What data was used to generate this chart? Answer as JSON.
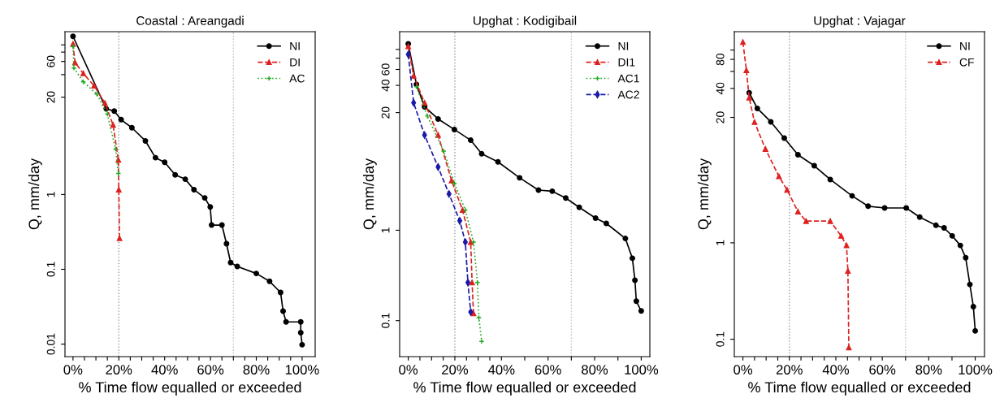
{
  "chart_data": [
    {
      "type": "line",
      "title": "Coastal : Areangadi",
      "xlabel": "% Time flow equalled or exceeded",
      "ylabel": "Q, mm/day",
      "log": "y",
      "legend": "top right",
      "grid": false,
      "xlim": [
        -3.5,
        105.7
      ],
      "ylim": [
        0.0068,
        150
      ],
      "xticks": [
        {
          "value": 0,
          "label": "0%"
        },
        {
          "value": 5,
          "label": null
        },
        {
          "value": 10,
          "label": null
        },
        {
          "value": 15,
          "label": null
        },
        {
          "value": 20,
          "label": "20%"
        },
        {
          "value": 25,
          "label": null
        },
        {
          "value": 30,
          "label": null
        },
        {
          "value": 35,
          "label": null
        },
        {
          "value": 40,
          "label": "40%"
        },
        {
          "value": 45,
          "label": null
        },
        {
          "value": 50,
          "label": null
        },
        {
          "value": 55,
          "label": null
        },
        {
          "value": 60,
          "label": "60%"
        },
        {
          "value": 65,
          "label": null
        },
        {
          "value": 70,
          "label": null
        },
        {
          "value": 75,
          "label": null
        },
        {
          "value": 80,
          "label": "80%"
        },
        {
          "value": 85,
          "label": null
        },
        {
          "value": 90,
          "label": null
        },
        {
          "value": 95,
          "label": null
        },
        {
          "value": 100,
          "label": "100%"
        }
      ],
      "yticks": [
        0.01,
        0.1,
        1,
        20,
        {
          "value": 40,
          "label": null
        },
        60,
        {
          "value": 80,
          "label": null
        },
        {
          "value": 100,
          "label": null
        }
      ],
      "ref_lines": [
        {
          "axis": "x",
          "value": 20,
          "color": "#999999",
          "line_style": "dotted"
        },
        {
          "axis": "x",
          "value": 70,
          "color": "#bbbbbb",
          "line_style": "dotted"
        }
      ],
      "series": [
        {
          "name": "NI",
          "color": "#000000",
          "marker": "circle",
          "line_style": "solid",
          "x": [
            0,
            14.5,
            18,
            21,
            25.7,
            31.6,
            36,
            40,
            44.6,
            49,
            52.8,
            57.5,
            59.9,
            60.5,
            65,
            67,
            68.8,
            71.7,
            80,
            85.8,
            90.6,
            91.7,
            93,
            99.4,
            99.4,
            100
          ],
          "values": [
            130,
            14,
            13,
            10,
            7.8,
            5.2,
            3.1,
            2.7,
            1.83,
            1.6,
            1.16,
            0.9,
            0.68,
            0.39,
            0.39,
            0.22,
            0.123,
            0.109,
            0.088,
            0.069,
            0.049,
            0.0276,
            0.0198,
            0.0198,
            0.0142,
            0.0098
          ]
        },
        {
          "name": "DI",
          "color": "#dd2222",
          "marker": "triangle",
          "line_style": "dashed",
          "x": [
            0,
            0.9,
            4.5,
            9.2,
            13.9,
            17.5,
            19.8,
            20,
            20.3
          ],
          "values": [
            103,
            58,
            41.5,
            28.4,
            16.7,
            8.5,
            2.9,
            1.16,
            0.26
          ]
        },
        {
          "name": "AC",
          "color": "#22aa22",
          "marker": "cross",
          "line_style": "dotted",
          "x": [
            0,
            0.4,
            4.5,
            10.4,
            15,
            18.6,
            19.8
          ],
          "values": [
            95,
            49,
            32,
            22,
            11.9,
            4.04,
            1.91
          ]
        }
      ]
    },
    {
      "type": "line",
      "title": "Upghat : Kodigibail",
      "xlabel": "% Time flow equalled or exceeded",
      "ylabel": "Q, mm/day",
      "log": "y",
      "legend": "top right",
      "grid": false,
      "xlim": [
        -3.7,
        103.7
      ],
      "ylim": [
        0.04,
        157
      ],
      "xticks": [
        {
          "value": 0,
          "label": "0%"
        },
        {
          "value": 5,
          "label": null
        },
        {
          "value": 10,
          "label": null
        },
        {
          "value": 15,
          "label": null
        },
        {
          "value": 20,
          "label": "20%"
        },
        {
          "value": 25,
          "label": null
        },
        {
          "value": 30,
          "label": null
        },
        {
          "value": 35,
          "label": null
        },
        {
          "value": 40,
          "label": "40%"
        },
        {
          "value": 50,
          "label": null
        },
        {
          "value": 60,
          "label": "60%"
        },
        {
          "value": 70,
          "label": null
        },
        {
          "value": 80,
          "label": "80%"
        },
        {
          "value": 90,
          "label": null
        },
        {
          "value": 100,
          "label": "100%"
        }
      ],
      "yticks": [
        0.1,
        1,
        20,
        40,
        60,
        {
          "value": 80,
          "label": null
        },
        {
          "value": 100,
          "label": null
        }
      ],
      "ref_lines": [
        {
          "axis": "x",
          "value": 20,
          "color": "#999999",
          "line_style": "dotted"
        },
        {
          "axis": "x",
          "value": 70,
          "color": "#bbbbbb",
          "line_style": "dotted"
        }
      ],
      "series": [
        {
          "name": "NI",
          "color": "#000000",
          "marker": "circle",
          "line_style": "solid",
          "x": [
            0,
            3.5,
            7,
            12.8,
            19.8,
            26.8,
            31.5,
            38.5,
            47.8,
            55.9,
            61.8,
            67.6,
            73.4,
            80.4,
            85,
            93.2,
            96.2,
            97.3,
            97.9,
            100
          ],
          "values": [
            115,
            41,
            23.2,
            17,
            13,
            9.9,
            7.0,
            5.7,
            3.8,
            2.78,
            2.7,
            2.27,
            1.79,
            1.36,
            1.19,
            0.81,
            0.49,
            0.28,
            0.164,
            0.128
          ]
        },
        {
          "name": "DI1",
          "color": "#dd2222",
          "marker": "triangle",
          "line_style": "dashed",
          "x": [
            0,
            2.3,
            7,
            12.8,
            18.6,
            23.3,
            26.8,
            27.4,
            28
          ],
          "values": [
            108,
            51,
            25.7,
            11.3,
            3.54,
            1.67,
            0.74,
            0.264,
            0.12
          ]
        },
        {
          "name": "AC1",
          "color": "#22aa22",
          "marker": "cross",
          "line_style": "dotted",
          "x": [
            3.5,
            8.2,
            15.2,
            19.8,
            24.5,
            28,
            29.7,
            30.3,
            31.5
          ],
          "values": [
            38.6,
            18.3,
            7.5,
            3.3,
            1.67,
            0.74,
            0.264,
            0.108,
            0.059
          ]
        },
        {
          "name": "AC2",
          "color": "#1a1aaa",
          "marker": "diamond",
          "line_style": "dashed",
          "x": [
            0,
            2.3,
            7,
            12.8,
            17.5,
            22.1,
            24.5,
            25.6,
            26.8
          ],
          "values": [
            88,
            25.7,
            11.3,
            5.0,
            2.52,
            1.27,
            0.74,
            0.264,
            0.125
          ]
        }
      ]
    },
    {
      "type": "line",
      "title": "Upghat : Vajagar",
      "xlabel": "% Time flow equalled or exceeded",
      "ylabel": "Q, mm/day",
      "log": "y",
      "legend": "top right",
      "grid": false,
      "xlim": [
        -3.7,
        104
      ],
      "ylim": [
        0.066,
        155
      ],
      "xticks": [
        {
          "value": 0,
          "label": "0%"
        },
        {
          "value": 5,
          "label": null
        },
        {
          "value": 10,
          "label": null
        },
        {
          "value": 15,
          "label": null
        },
        {
          "value": 20,
          "label": "20%"
        },
        {
          "value": 25,
          "label": null
        },
        {
          "value": 30,
          "label": null
        },
        {
          "value": 35,
          "label": null
        },
        {
          "value": 40,
          "label": "40%"
        },
        {
          "value": 45,
          "label": null
        },
        {
          "value": 50,
          "label": null
        },
        {
          "value": 55,
          "label": null
        },
        {
          "value": 60,
          "label": "60%"
        },
        {
          "value": 70,
          "label": null
        },
        {
          "value": 80,
          "label": "80%"
        },
        {
          "value": 90,
          "label": null
        },
        {
          "value": 100,
          "label": "100%"
        }
      ],
      "yticks": [
        0.1,
        1,
        20,
        40,
        {
          "value": 60,
          "label": null
        },
        80,
        {
          "value": 100,
          "label": null
        }
      ],
      "ref_lines": [
        {
          "axis": "x",
          "value": 20,
          "color": "#999999",
          "line_style": "dotted"
        },
        {
          "axis": "x",
          "value": 70,
          "color": "#bbbbbb",
          "line_style": "dotted"
        }
      ],
      "series": [
        {
          "name": "NI",
          "color": "#000000",
          "marker": "circle",
          "line_style": "solid",
          "x": [
            2.7,
            6.2,
            12,
            17.8,
            23.7,
            30.7,
            37.6,
            47,
            53.9,
            61,
            70.3,
            76.1,
            83.1,
            86.6,
            90.1,
            93.6,
            95.9,
            97.7,
            99.2,
            100
          ],
          "values": [
            36,
            24.8,
            18,
            12.2,
            8.2,
            6.3,
            4.54,
            3.07,
            2.4,
            2.3,
            2.3,
            1.85,
            1.52,
            1.43,
            1.18,
            0.94,
            0.7,
            0.37,
            0.218,
            0.122
          ]
        },
        {
          "name": "CF",
          "color": "#dd2222",
          "marker": "triangle",
          "line_style": "dashed",
          "x": [
            0,
            1.5,
            2.7,
            5,
            9.7,
            15.5,
            19,
            23.7,
            27.2,
            37.6,
            42.3,
            44.6,
            45.2,
            45.6
          ],
          "values": [
            121,
            61.7,
            32,
            17.9,
            9.4,
            4.9,
            3.54,
            2.11,
            1.68,
            1.68,
            1.18,
            0.94,
            0.51,
            0.082
          ]
        }
      ]
    }
  ]
}
